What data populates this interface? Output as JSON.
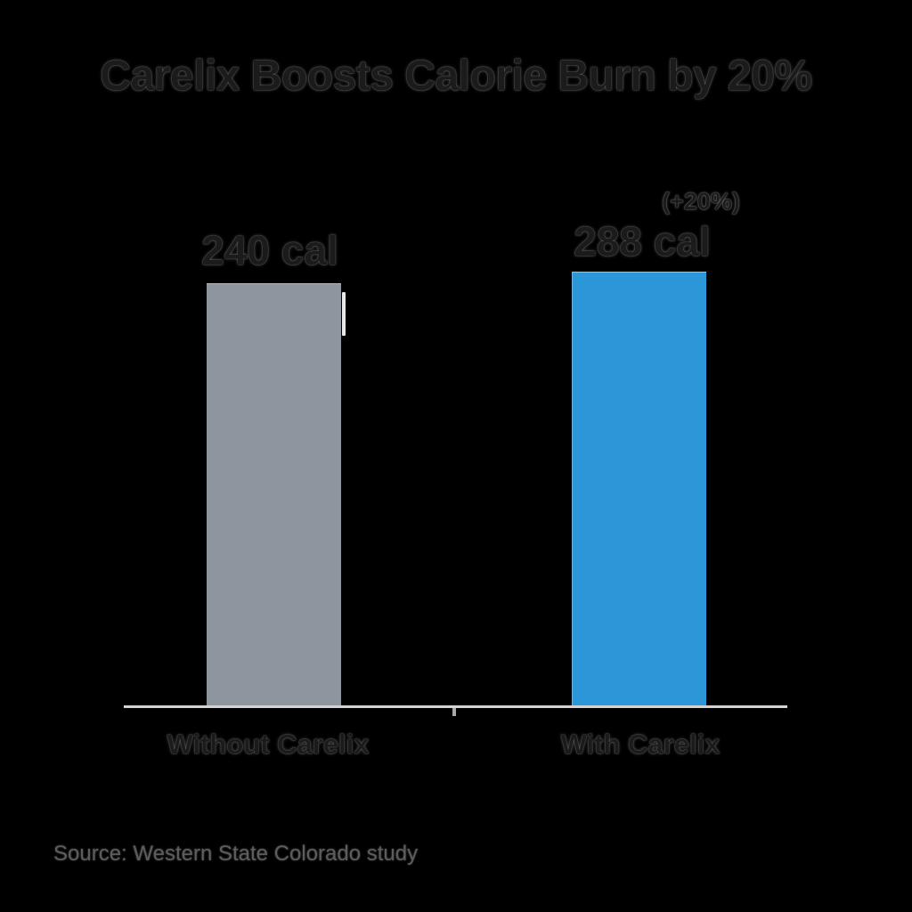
{
  "chart_data": {
    "type": "bar",
    "title": "Carelix Boosts Calorie Burn by 20%",
    "categories": [
      "Without Carelix",
      "With Carelix"
    ],
    "values": [
      240,
      288
    ],
    "unit": "cal",
    "value_labels": [
      "240 cal",
      "288 cal"
    ],
    "annotations": [
      "(+20%)"
    ],
    "xlabel": "",
    "ylabel": "",
    "legend": "none",
    "grid": "off",
    "layout": {
      "baseline_axis": "x",
      "value_labels_position": "above bars",
      "annotation_position": "above right value label"
    },
    "colors": {
      "background": "#000000",
      "bar_without_carelix": "#8e959e",
      "bar_with_carelix": "#2b96d8",
      "baseline": "#d3d3d3",
      "text": "#1b1b1b",
      "source_text": "#5d5d5d"
    }
  },
  "source_note": "Source: Western State Colorado study"
}
